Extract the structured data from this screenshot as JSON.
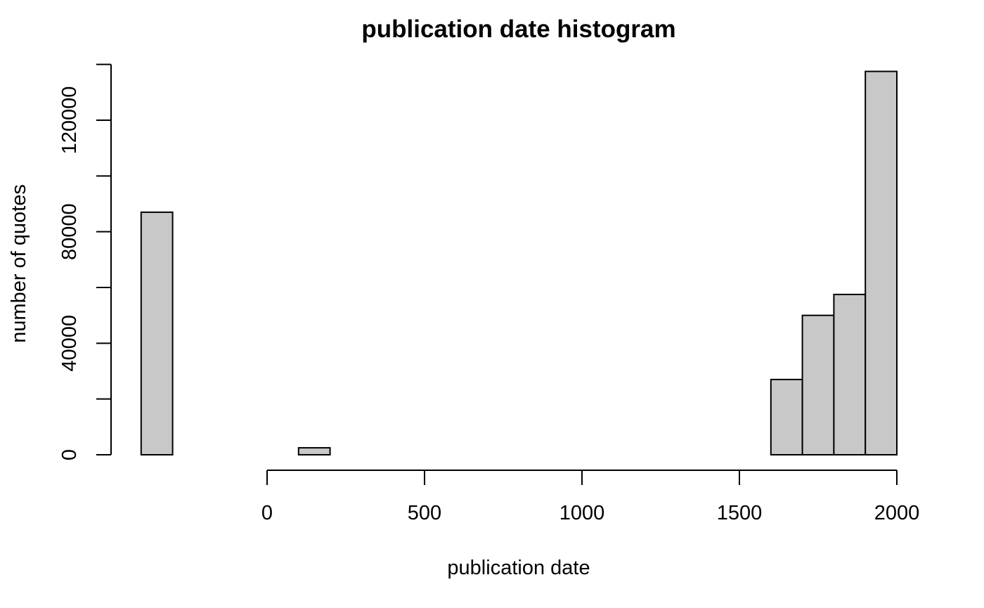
{
  "chart_data": {
    "type": "bar",
    "title": "publication date histogram",
    "xlabel": "publication date",
    "ylabel": "number of quotes",
    "bin_width": 100,
    "bins": [
      {
        "start": -800,
        "end": -700,
        "count": 0
      },
      {
        "start": -700,
        "end": -600,
        "count": 0
      },
      {
        "start": -600,
        "end": -500,
        "count": 0
      },
      {
        "start": -500,
        "end": -400,
        "count": 0
      },
      {
        "start": -400,
        "end": -300,
        "count": 87000
      },
      {
        "start": -300,
        "end": -200,
        "count": 0
      },
      {
        "start": -200,
        "end": -100,
        "count": 0
      },
      {
        "start": -100,
        "end": 0,
        "count": 0
      },
      {
        "start": 0,
        "end": 100,
        "count": 0
      },
      {
        "start": 100,
        "end": 200,
        "count": 2500
      },
      {
        "start": 200,
        "end": 300,
        "count": 0
      },
      {
        "start": 300,
        "end": 400,
        "count": 0
      },
      {
        "start": 400,
        "end": 500,
        "count": 0
      },
      {
        "start": 500,
        "end": 600,
        "count": 0
      },
      {
        "start": 600,
        "end": 700,
        "count": 0
      },
      {
        "start": 700,
        "end": 800,
        "count": 0
      },
      {
        "start": 800,
        "end": 900,
        "count": 0
      },
      {
        "start": 900,
        "end": 1000,
        "count": 0
      },
      {
        "start": 1000,
        "end": 1100,
        "count": 0
      },
      {
        "start": 1100,
        "end": 1200,
        "count": 0
      },
      {
        "start": 1200,
        "end": 1300,
        "count": 0
      },
      {
        "start": 1300,
        "end": 1400,
        "count": 0
      },
      {
        "start": 1400,
        "end": 1500,
        "count": 0
      },
      {
        "start": 1500,
        "end": 1600,
        "count": 0
      },
      {
        "start": 1600,
        "end": 1700,
        "count": 27000
      },
      {
        "start": 1700,
        "end": 1800,
        "count": 50000
      },
      {
        "start": 1800,
        "end": 1900,
        "count": 57500
      },
      {
        "start": 1900,
        "end": 2000,
        "count": 137500
      }
    ],
    "x_ticks": [
      0,
      500,
      1000,
      1500,
      2000
    ],
    "y_ticks": [
      0,
      20000,
      40000,
      60000,
      80000,
      100000,
      120000,
      140000
    ],
    "y_tick_labels": [
      {
        "value": 0,
        "label": "0"
      },
      {
        "value": 40000,
        "label": "40000"
      },
      {
        "value": 80000,
        "label": "80000"
      },
      {
        "value": 120000,
        "label": "120000"
      }
    ],
    "xlim": [
      -400,
      2000
    ],
    "ylim": [
      0,
      140000
    ],
    "grid": false,
    "legend": "none",
    "bar_color": "#c8c8c8",
    "edge_color": "#000000"
  }
}
